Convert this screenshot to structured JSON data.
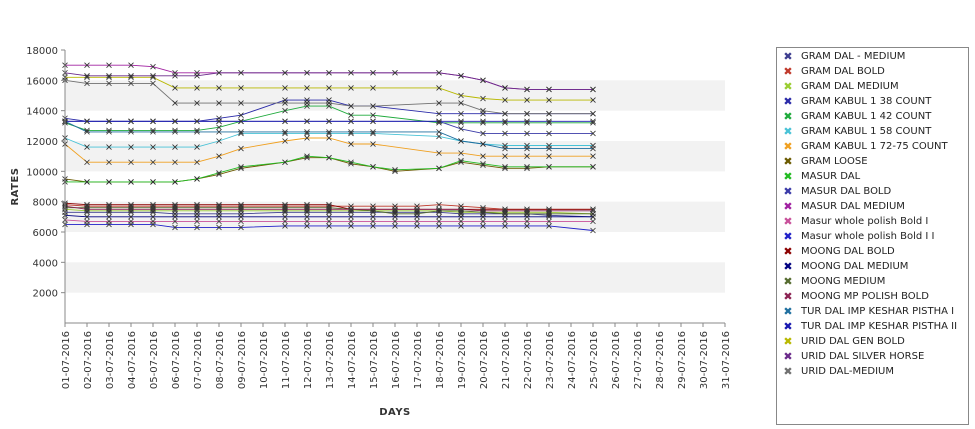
{
  "chart_data": {
    "type": "line",
    "title": "",
    "xlabel": "DAYS",
    "ylabel": "RATES",
    "ylim": [
      0,
      18000
    ],
    "yticks": [
      2000,
      4000,
      6000,
      8000,
      10000,
      12000,
      14000,
      16000,
      18000
    ],
    "grid": "alternating horizontal bands",
    "legend_position": "right",
    "categories": [
      "01-07-2016",
      "02-07-2016",
      "03-07-2016",
      "04-07-2016",
      "05-07-2016",
      "06-07-2016",
      "07-07-2016",
      "08-07-2016",
      "09-07-2016",
      "10-07-2016",
      "11-07-2016",
      "12-07-2016",
      "13-07-2016",
      "14-07-2016",
      "15-07-2016",
      "16-07-2016",
      "17-07-2016",
      "18-07-2016",
      "19-07-2016",
      "20-07-2016",
      "21-07-2016",
      "22-07-2016",
      "23-07-2016",
      "24-07-2016",
      "25-07-2016",
      "26-07-2016",
      "27-07-2016",
      "28-07-2016",
      "29-07-2016",
      "30-07-2016",
      "31-07-2016"
    ],
    "series": [
      {
        "name": "GRAM DAL - MEDIUM",
        "color": "#3d3d8f",
        "values": [
          7300,
          7300,
          7300,
          7300,
          7300,
          7200,
          7200,
          7200,
          7200,
          null,
          7300,
          7300,
          7300,
          7300,
          7300,
          7300,
          7300,
          7300,
          7200,
          7200,
          7200,
          7200,
          7100,
          null,
          7000,
          null,
          null,
          null,
          null,
          null,
          null
        ]
      },
      {
        "name": "GRAM DAL BOLD",
        "color": "#c0392b",
        "values": [
          7800,
          7700,
          7700,
          7700,
          7700,
          7700,
          7700,
          7700,
          7700,
          null,
          7700,
          7700,
          7700,
          7700,
          7700,
          7700,
          7700,
          7800,
          7700,
          7600,
          7500,
          7500,
          7500,
          null,
          7500,
          null,
          null,
          null,
          null,
          null,
          null
        ]
      },
      {
        "name": "GRAM DAL MEDIUM",
        "color": "#9acd32",
        "values": [
          7500,
          7400,
          7400,
          7400,
          7400,
          7400,
          7400,
          7400,
          7400,
          null,
          7400,
          7400,
          7400,
          7400,
          7400,
          7400,
          7400,
          7400,
          7300,
          7300,
          7300,
          7300,
          7300,
          null,
          7200,
          null,
          null,
          null,
          null,
          null,
          null
        ]
      },
      {
        "name": "GRAM KABUL 1 38 COUNT",
        "color": "#2a2aa8",
        "values": [
          13500,
          13300,
          13300,
          13300,
          13300,
          13300,
          13300,
          13500,
          13700,
          null,
          14700,
          14700,
          14700,
          14300,
          14300,
          null,
          null,
          13800,
          13800,
          13800,
          13800,
          13800,
          13800,
          null,
          13800,
          null,
          null,
          null,
          null,
          null,
          null
        ]
      },
      {
        "name": "GRAM KABUL 1 42 COUNT",
        "color": "#1faa3c",
        "values": [
          13200,
          12700,
          12700,
          12700,
          12700,
          12700,
          12700,
          12900,
          13300,
          null,
          14000,
          14300,
          14300,
          13700,
          13700,
          null,
          null,
          13200,
          13200,
          13200,
          13200,
          13200,
          13200,
          null,
          13200,
          null,
          null,
          null,
          null,
          null,
          null
        ]
      },
      {
        "name": "GRAM KABUL 1 58 COUNT",
        "color": "#48c2d6",
        "values": [
          12200,
          11600,
          11600,
          11600,
          11600,
          11600,
          11600,
          12000,
          12500,
          null,
          12500,
          12500,
          12500,
          12500,
          12500,
          null,
          null,
          12300,
          12000,
          11800,
          11700,
          11700,
          11700,
          null,
          11700,
          null,
          null,
          null,
          null,
          null,
          null
        ]
      },
      {
        "name": "GRAM KABUL 1 72-75 COUNT",
        "color": "#f0a020",
        "values": [
          11800,
          10600,
          10600,
          10600,
          10600,
          10600,
          10600,
          11000,
          11500,
          null,
          12000,
          12200,
          12200,
          11800,
          11800,
          null,
          null,
          11200,
          11200,
          11000,
          11000,
          11000,
          11000,
          null,
          11000,
          null,
          null,
          null,
          null,
          null,
          null
        ]
      },
      {
        "name": "GRAM LOOSE",
        "color": "#6b5a00",
        "values": [
          9500,
          9300,
          9300,
          9300,
          9300,
          9300,
          9500,
          9800,
          10200,
          null,
          10600,
          10900,
          10900,
          10500,
          10300,
          10000,
          null,
          10200,
          10600,
          10400,
          10200,
          10200,
          10300,
          null,
          10300,
          null,
          null,
          null,
          null,
          null,
          null
        ]
      },
      {
        "name": "MASUR DAL",
        "color": "#22bb22",
        "values": [
          9300,
          9300,
          9300,
          9300,
          9300,
          9300,
          9500,
          9900,
          10300,
          null,
          10600,
          11000,
          10900,
          10600,
          10300,
          10100,
          null,
          10200,
          10700,
          10500,
          10300,
          10300,
          10300,
          null,
          10300,
          null,
          null,
          null,
          null,
          null,
          null
        ]
      },
      {
        "name": "MASUR DAL BOLD",
        "color": "#3a3aa8",
        "values": [
          13300,
          13300,
          13300,
          13300,
          13300,
          13300,
          null,
          13300,
          13300,
          null,
          13300,
          13300,
          13300,
          13300,
          13300,
          null,
          null,
          13300,
          12800,
          12500,
          12500,
          12500,
          12500,
          null,
          12500,
          null,
          null,
          null,
          null,
          null,
          null
        ]
      },
      {
        "name": "MASUR DAL MEDIUM",
        "color": "#a020a0",
        "values": [
          17000,
          17000,
          17000,
          17000,
          16900,
          16500,
          16500,
          16500,
          16500,
          null,
          16500,
          16500,
          16500,
          16500,
          16500,
          16500,
          null,
          16500,
          16300,
          16000,
          15500,
          15400,
          15400,
          null,
          15400,
          null,
          null,
          null,
          null,
          null,
          null
        ]
      },
      {
        "name": "Masur whole polish Bold I",
        "color": "#c8509a",
        "values": [
          6800,
          6700,
          6700,
          6700,
          6700,
          6700,
          6700,
          6700,
          6700,
          null,
          6700,
          6700,
          6700,
          6700,
          6700,
          6700,
          6700,
          6700,
          6700,
          6700,
          6700,
          6700,
          6700,
          null,
          6700,
          null,
          null,
          null,
          null,
          null,
          null
        ]
      },
      {
        "name": "Masur whole polish Bold I I",
        "color": "#2020c8",
        "values": [
          6500,
          6500,
          6500,
          6500,
          6500,
          6300,
          6300,
          6300,
          6300,
          null,
          6400,
          6400,
          6400,
          6400,
          6400,
          6400,
          6400,
          6400,
          6400,
          6400,
          6400,
          6400,
          6400,
          null,
          6100,
          null,
          null,
          null,
          null,
          null,
          null
        ]
      },
      {
        "name": "MOONG DAL BOLD",
        "color": "#8b0000",
        "values": [
          7900,
          7800,
          7800,
          7800,
          7800,
          7800,
          7800,
          7800,
          7800,
          null,
          7800,
          7800,
          7800,
          7500,
          7500,
          7500,
          null,
          7500,
          7500,
          7500,
          7500,
          7500,
          7500,
          null,
          7500,
          null,
          null,
          null,
          null,
          null,
          null
        ]
      },
      {
        "name": "MOONG DAL MEDIUM",
        "color": "#000080",
        "values": [
          7100,
          7000,
          7000,
          7000,
          7000,
          7000,
          7000,
          7000,
          7000,
          null,
          7000,
          7000,
          7000,
          7000,
          7000,
          7000,
          7000,
          7000,
          7000,
          7000,
          7000,
          7000,
          7000,
          null,
          7000,
          null,
          null,
          null,
          null,
          null,
          null
        ]
      },
      {
        "name": "MOONG MEDIUM",
        "color": "#556b2f",
        "values": [
          7600,
          7600,
          7600,
          7600,
          7600,
          7600,
          7600,
          7600,
          7600,
          null,
          7600,
          7600,
          7600,
          7500,
          7400,
          7200,
          7200,
          7400,
          7400,
          7300,
          7200,
          7200,
          7200,
          null,
          7200,
          null,
          null,
          null,
          null,
          null,
          null
        ]
      },
      {
        "name": "MOONG MP POLISH BOLD",
        "color": "#8b2252",
        "values": [
          7700,
          7500,
          7500,
          7500,
          7500,
          7500,
          7500,
          7500,
          7500,
          null,
          7500,
          7500,
          7500,
          7500,
          7500,
          7500,
          7500,
          7500,
          7500,
          7400,
          7400,
          7400,
          7400,
          null,
          7400,
          null,
          null,
          null,
          null,
          null,
          null
        ]
      },
      {
        "name": "TUR DAL IMP KESHAR PISTHA I",
        "color": "#1f6f9f",
        "values": [
          13300,
          12600,
          12600,
          12600,
          12600,
          12600,
          12600,
          12600,
          12600,
          null,
          12600,
          12600,
          12600,
          12600,
          12600,
          null,
          null,
          12600,
          12000,
          11800,
          11500,
          11500,
          11500,
          null,
          11500,
          null,
          null,
          null,
          null,
          null,
          null
        ]
      },
      {
        "name": "TUR DAL IMP KESHAR PISTHA II",
        "color": "#1818b0",
        "values": [
          13300,
          13300,
          13300,
          13300,
          13300,
          13300,
          13300,
          13300,
          13300,
          null,
          13300,
          13300,
          13300,
          13300,
          13300,
          null,
          null,
          13300,
          13300,
          13300,
          13300,
          13300,
          13300,
          null,
          13300,
          null,
          null,
          null,
          null,
          null,
          null
        ]
      },
      {
        "name": "URID DAL GEN BOLD",
        "color": "#b8b800",
        "values": [
          16200,
          16200,
          16200,
          16200,
          16200,
          15500,
          15500,
          15500,
          15500,
          null,
          15500,
          15500,
          15500,
          15500,
          15500,
          null,
          null,
          15500,
          15000,
          14800,
          14700,
          14700,
          14700,
          null,
          14700,
          null,
          null,
          null,
          null,
          null,
          null
        ]
      },
      {
        "name": "URID DAL SILVER HORSE",
        "color": "#6a2a8a",
        "values": [
          16500,
          16300,
          16300,
          16300,
          16300,
          16300,
          16300,
          16500,
          16500,
          null,
          16500,
          16500,
          16500,
          16500,
          16500,
          16500,
          null,
          16500,
          16300,
          16000,
          15500,
          15400,
          15400,
          null,
          15400,
          null,
          null,
          null,
          null,
          null,
          null
        ]
      },
      {
        "name": "URID DAL-MEDIUM",
        "color": "#707070",
        "values": [
          16000,
          15800,
          15800,
          15800,
          15800,
          14500,
          14500,
          14500,
          14500,
          null,
          14500,
          14500,
          14500,
          14300,
          14300,
          null,
          null,
          14500,
          14500,
          14000,
          13800,
          13800,
          13800,
          null,
          13800,
          null,
          null,
          null,
          null,
          null,
          null
        ]
      }
    ]
  }
}
